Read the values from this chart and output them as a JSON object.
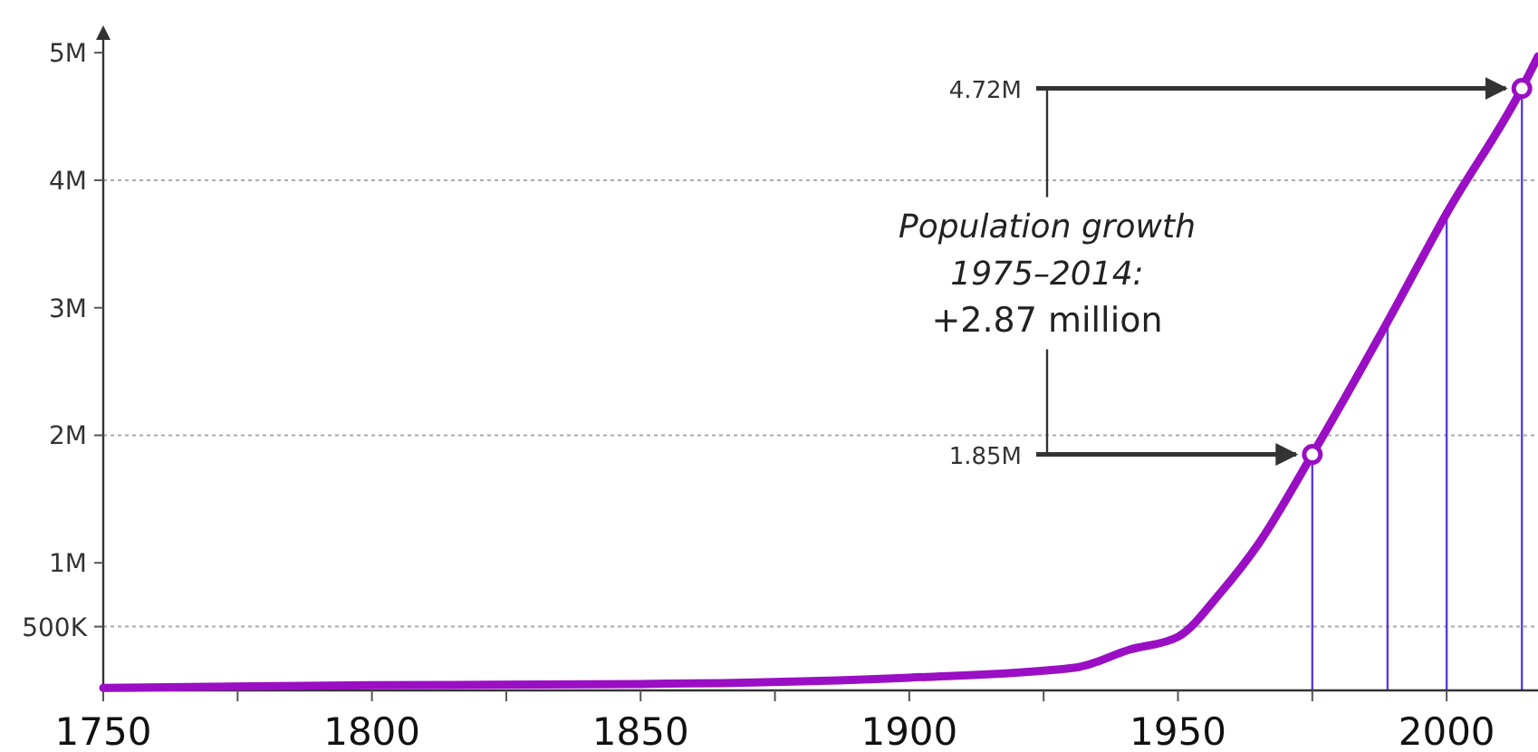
{
  "chart_data": {
    "type": "line",
    "x": [
      1750,
      1800,
      1850,
      1900,
      1931,
      1941,
      1950,
      1958,
      1965,
      1975,
      1989,
      2000,
      2014,
      2017
    ],
    "series": [
      {
        "color": "#9a0fc4",
        "values": [
          20000,
          40000,
          50000,
          100000,
          180000,
          320000,
          420000,
          770000,
          1150000,
          1850000,
          2890000,
          3740000,
          4720000,
          4970000
        ]
      },
      {
        "type": "scatter",
        "color": "#9a0fc4",
        "marker": "circle",
        "x": [
          1975,
          2014
        ],
        "values": [
          1850000,
          4720000
        ],
        "value_labels": [
          "1.85M",
          "4.72M"
        ]
      }
    ],
    "xlim": [
      1750,
      2017
    ],
    "xticks": [
      1750,
      {
        "value": 1775,
        "label": null
      },
      1800,
      {
        "value": 1825,
        "label": null
      },
      1850,
      {
        "value": 1875,
        "label": null
      },
      1900,
      {
        "value": 1925,
        "label": null
      },
      1950,
      {
        "value": 1975,
        "label": null
      },
      2000
    ],
    "ylim": [
      0,
      5200000
    ],
    "yticks": [
      {
        "value": 500000,
        "label": "500K"
      },
      {
        "value": 1000000,
        "label": "1M"
      },
      {
        "value": 2000000,
        "label": "2M"
      },
      {
        "value": 3000000,
        "label": "3M"
      },
      {
        "value": 4000000,
        "label": "4M"
      },
      {
        "value": 5000000,
        "label": "5M"
      }
    ],
    "ref_lines": [
      {
        "axis": "y",
        "value": 500000,
        "color": "#aaaaaa",
        "line_style": "dotted"
      },
      {
        "axis": "y",
        "value": 2000000,
        "color": "#aaaaaa",
        "line_style": "dotted"
      },
      {
        "axis": "y",
        "value": 4000000,
        "color": "#aaaaaa",
        "line_style": "dotted"
      },
      {
        "axis": "x",
        "value": 1975,
        "color": "#5b3de0",
        "line_style": "solid"
      },
      {
        "axis": "x",
        "value": 1989,
        "color": "#5b3de0",
        "line_style": "solid"
      },
      {
        "axis": "x",
        "value": 2000,
        "color": "#5b3de0",
        "line_style": "solid"
      },
      {
        "axis": "x",
        "value": 2014,
        "color": "#5b3de0",
        "line_style": "solid"
      }
    ],
    "annotations": [
      "Population growth 1975–2014:",
      "+2.87 million"
    ]
  }
}
